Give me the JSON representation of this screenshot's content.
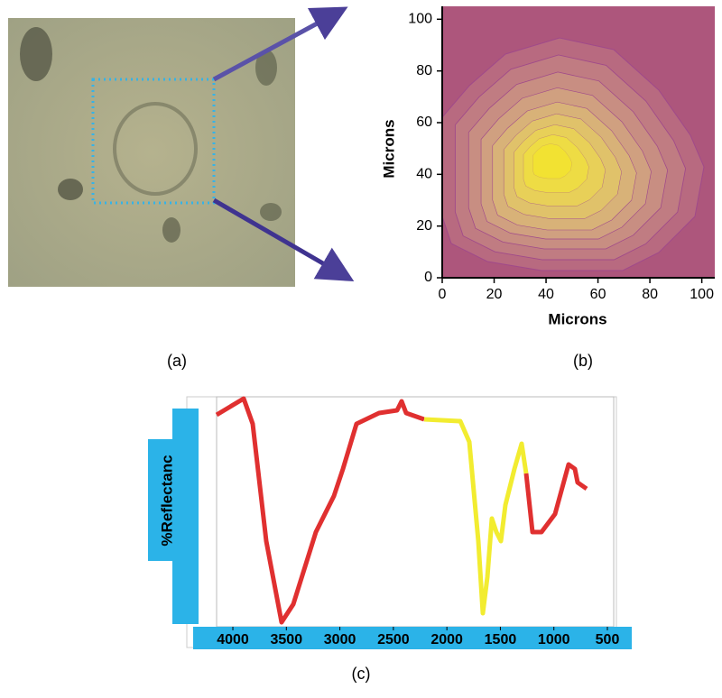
{
  "panel_b": {
    "x_label": "Microns",
    "y_label": "Microns",
    "xlim": [
      0,
      105
    ],
    "ylim": [
      0,
      105
    ],
    "xticks": [
      0,
      20,
      40,
      60,
      80,
      100
    ],
    "yticks": [
      0,
      20,
      40,
      60,
      80,
      100
    ]
  },
  "panel_c": {
    "y_label": "%Reflectanc",
    "xlim": [
      4152,
      441
    ],
    "xticks": [
      4000,
      3500,
      3000,
      2500,
      2000,
      1500,
      1000,
      500
    ]
  },
  "captions": [
    "(a)",
    "(b)",
    "(c)"
  ]
}
